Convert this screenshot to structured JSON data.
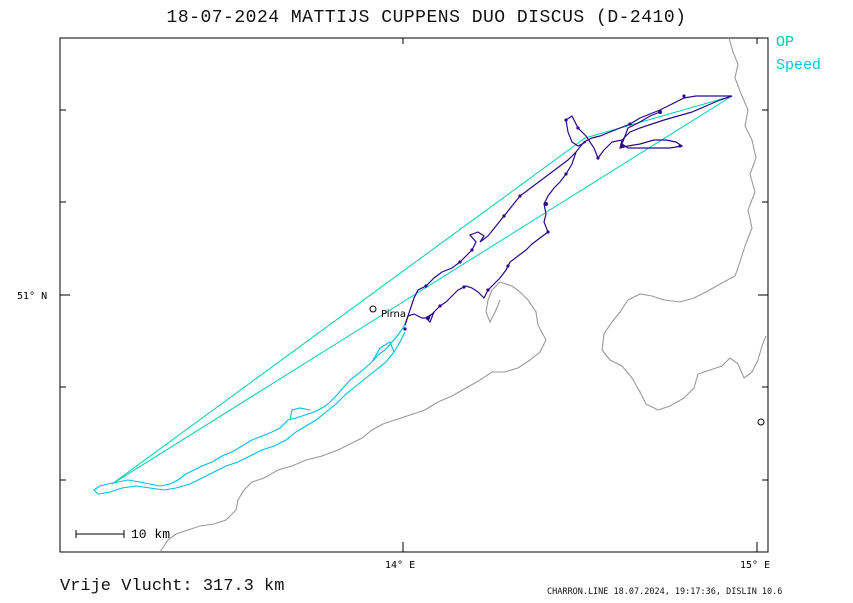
{
  "header": {
    "title": "18-07-2024    MATTIJS CUPPENS    DUO DISCUS (D-2410)"
  },
  "legend": {
    "op_label": "OP",
    "speed_label": "Speed",
    "op_color": "#00c8a0",
    "speed_color": "#00c8e0"
  },
  "axes": {
    "lat_label": "51° N",
    "lon_label_1": "14° E",
    "lon_label_2": "15° E"
  },
  "map": {
    "place_label": "Pirna",
    "scale_label": "10 km",
    "track_colors": {
      "main": "#2a0a8a",
      "speed": "#00c0e0",
      "op": "#00d0b0",
      "border": "#9a9a9a"
    }
  },
  "footer": {
    "distance": "Vrije Vlucht:  317.3 km",
    "credit": "CHARRON.LINE 18.07.2024, 19:17:36, DISLIN 10.6"
  }
}
